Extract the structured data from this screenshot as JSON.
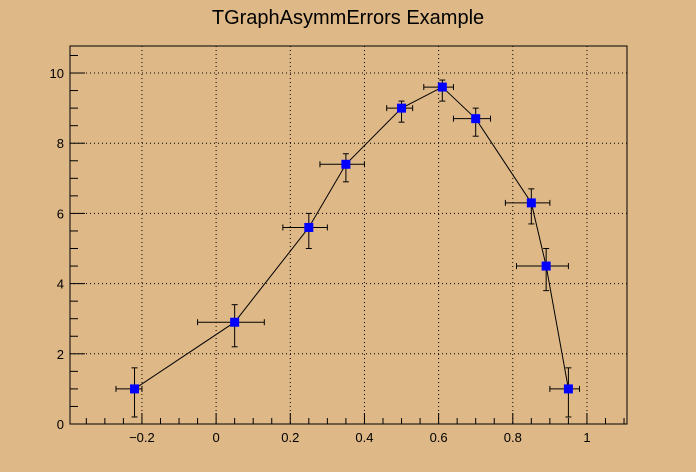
{
  "chart_data": {
    "type": "scatter",
    "title": "TGraphAsymmErrors Example",
    "xlabel": "",
    "ylabel": "",
    "xlim": [
      -0.394,
      1.108
    ],
    "ylim": [
      0,
      10.77
    ],
    "grid": true,
    "x_ticks": [
      -0.2,
      0,
      0.2,
      0.4,
      0.6,
      0.8,
      1
    ],
    "x_tick_labels": [
      "−0.2",
      "0",
      "0.2",
      "0.4",
      "0.6",
      "0.8",
      "1"
    ],
    "y_ticks": [
      0,
      2,
      4,
      6,
      8,
      10
    ],
    "y_tick_labels": [
      "0",
      "2",
      "4",
      "6",
      "8",
      "10"
    ],
    "marker_color": "#0000ff",
    "line_color": "#000000",
    "background_color": "#deb887",
    "points": {
      "x": [
        -0.22,
        0.05,
        0.25,
        0.35,
        0.5,
        0.61,
        0.7,
        0.85,
        0.89,
        0.95
      ],
      "y": [
        1,
        2.9,
        5.6,
        7.4,
        9,
        9.6,
        8.7,
        6.3,
        4.5,
        1
      ],
      "exl": [
        0.05,
        0.1,
        0.07,
        0.07,
        0.04,
        0.05,
        0.06,
        0.07,
        0.08,
        0.05
      ],
      "exh": [
        0.02,
        0.08,
        0.05,
        0.05,
        0.03,
        0.03,
        0.04,
        0.05,
        0.06,
        0.03
      ],
      "eyl": [
        0.8,
        0.7,
        0.6,
        0.5,
        0.4,
        0.4,
        0.5,
        0.6,
        0.7,
        0.8
      ],
      "eyh": [
        0.6,
        0.5,
        0.4,
        0.3,
        0.2,
        0.2,
        0.3,
        0.4,
        0.5,
        0.6
      ]
    }
  }
}
